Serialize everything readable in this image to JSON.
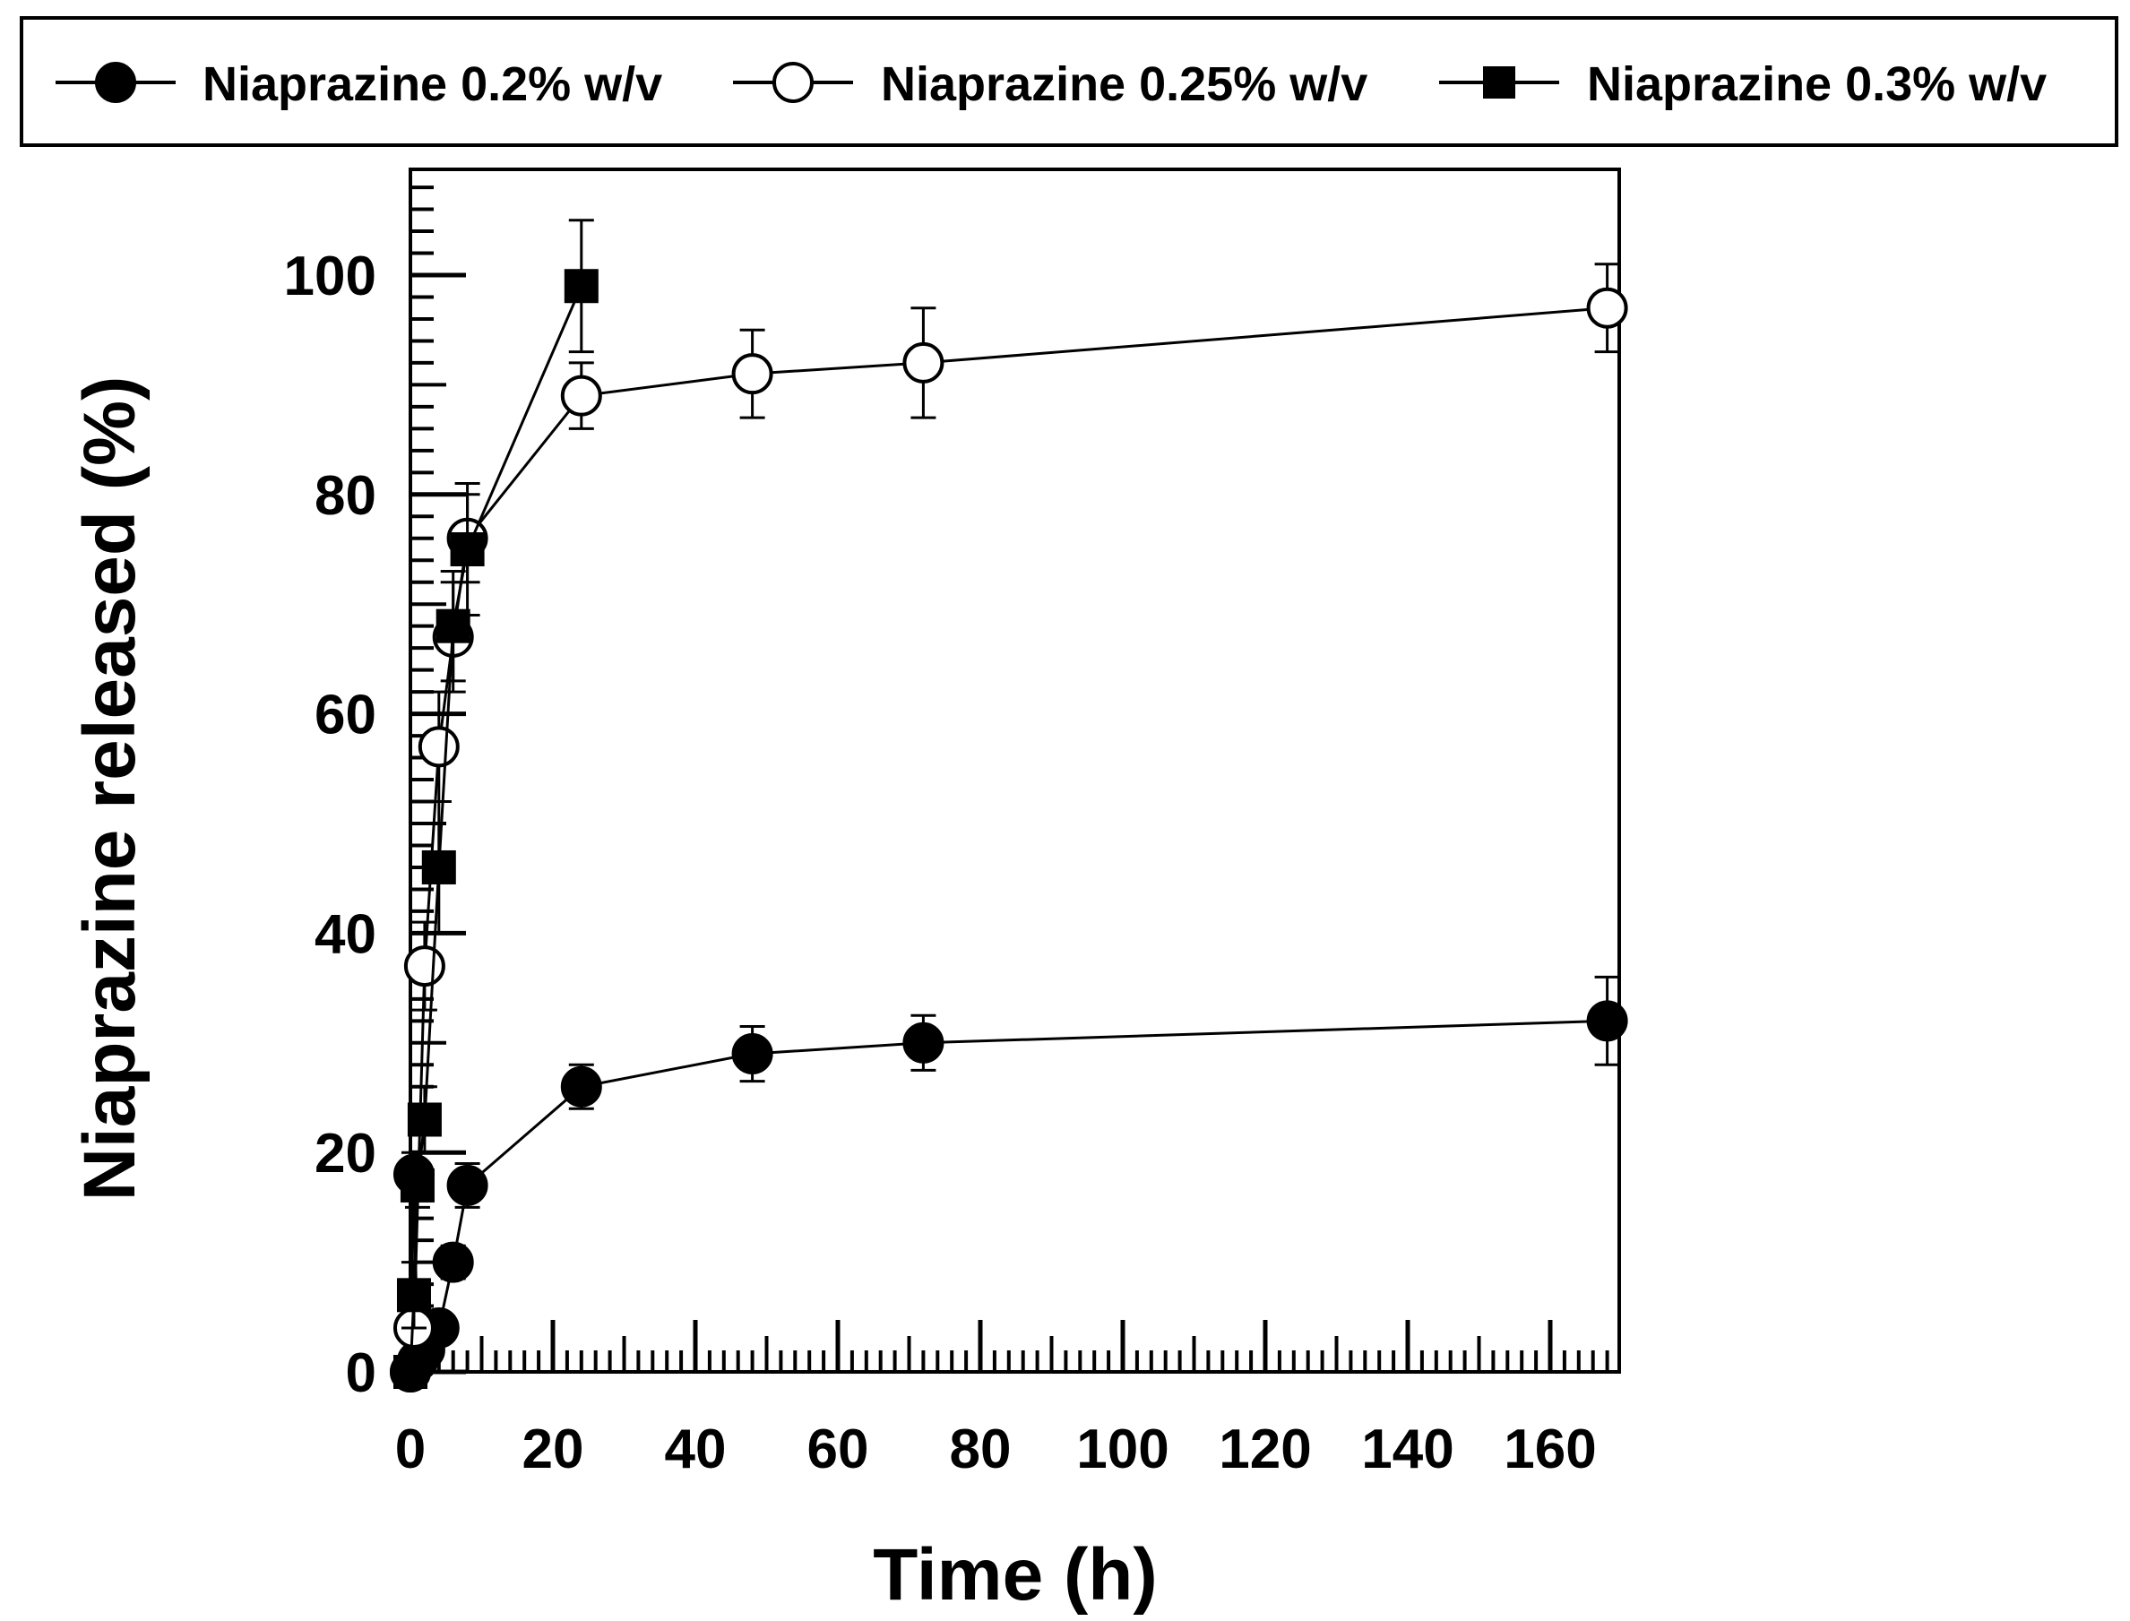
{
  "chart_data": {
    "type": "line",
    "title": "",
    "xlabel": "Time (h)",
    "ylabel": "Niaprazine released (%)",
    "xlim": [
      0,
      170
    ],
    "ylim": [
      0,
      110
    ],
    "x_ticks": [
      0,
      20,
      40,
      60,
      80,
      100,
      120,
      140,
      160
    ],
    "y_ticks": [
      0,
      20,
      40,
      60,
      80,
      100
    ],
    "x_minor_step": 2,
    "y_minor_step": 2,
    "grid": false,
    "legend_position": "top-outside",
    "series": [
      {
        "name": "Niaprazine 0.2% w/v",
        "marker": "filled-circle",
        "color": "#000000",
        "points": [
          {
            "x": 0,
            "y": 0,
            "err": 0
          },
          {
            "x": 0.5,
            "y": 18,
            "err": 2
          },
          {
            "x": 1,
            "y": 1,
            "err": 1
          },
          {
            "x": 2,
            "y": 2,
            "err": 1
          },
          {
            "x": 4,
            "y": 4,
            "err": 1
          },
          {
            "x": 6,
            "y": 10,
            "err": 1.5
          },
          {
            "x": 8,
            "y": 17,
            "err": 2
          },
          {
            "x": 24,
            "y": 26,
            "err": 2
          },
          {
            "x": 48,
            "y": 29,
            "err": 2.5
          },
          {
            "x": 72,
            "y": 30,
            "err": 2.5
          },
          {
            "x": 168,
            "y": 32,
            "err": 4
          }
        ]
      },
      {
        "name": "Niaprazine 0.25% w/v",
        "marker": "open-circle",
        "color": "#000000",
        "points": [
          {
            "x": 0,
            "y": 0,
            "err": 0
          },
          {
            "x": 0.5,
            "y": 4,
            "err": 1
          },
          {
            "x": 2,
            "y": 37,
            "err": 4
          },
          {
            "x": 4,
            "y": 57,
            "err": 5
          },
          {
            "x": 6,
            "y": 67,
            "err": 5
          },
          {
            "x": 8,
            "y": 76,
            "err": 4
          },
          {
            "x": 24,
            "y": 89,
            "err": 3
          },
          {
            "x": 48,
            "y": 91,
            "err": 4
          },
          {
            "x": 72,
            "y": 92,
            "err": 5
          },
          {
            "x": 168,
            "y": 97,
            "err": 4
          }
        ]
      },
      {
        "name": "Niaprazine 0.3% w/v",
        "marker": "filled-square",
        "color": "#000000",
        "points": [
          {
            "x": 0,
            "y": 0,
            "err": 0
          },
          {
            "x": 0.5,
            "y": 7,
            "err": 3
          },
          {
            "x": 1,
            "y": 17,
            "err": 2
          },
          {
            "x": 2,
            "y": 23,
            "err": 3
          },
          {
            "x": 4,
            "y": 46,
            "err": 6
          },
          {
            "x": 6,
            "y": 68,
            "err": 5
          },
          {
            "x": 8,
            "y": 75,
            "err": 6
          },
          {
            "x": 24,
            "y": 99,
            "err": 6
          }
        ]
      }
    ]
  }
}
